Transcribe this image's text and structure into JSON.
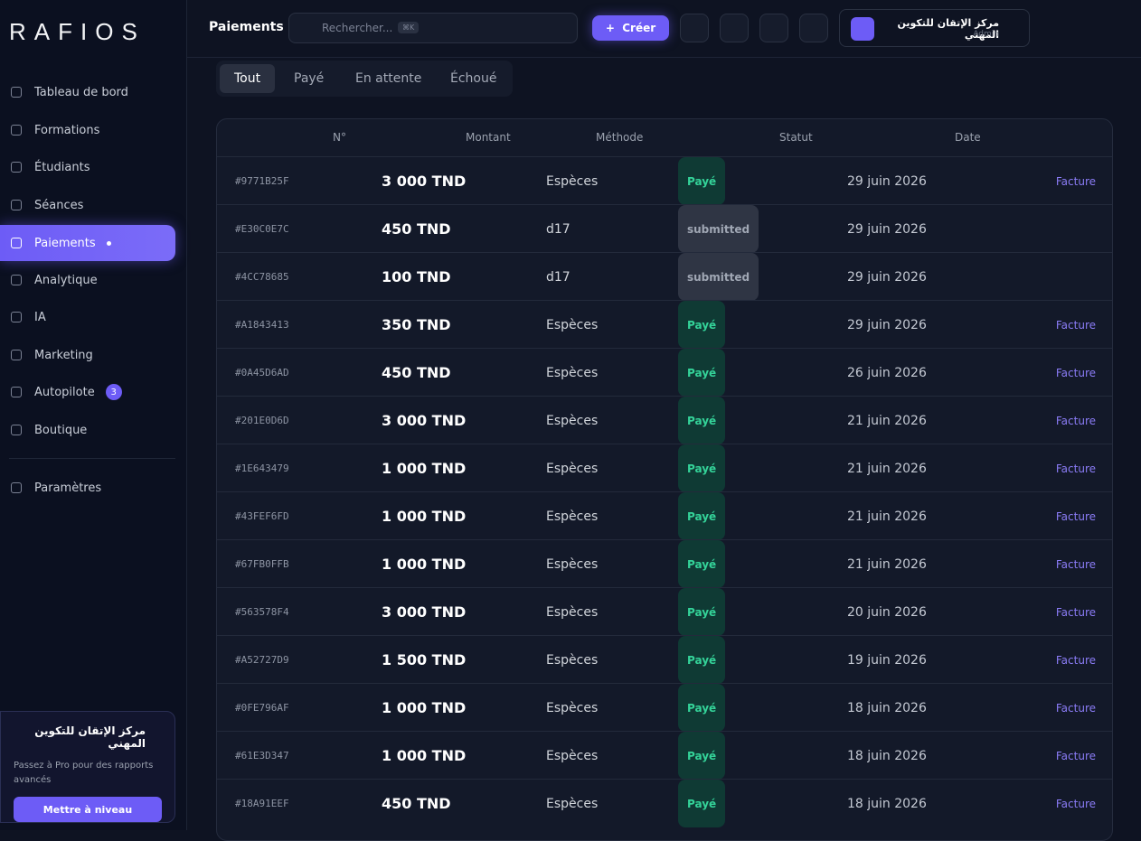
{
  "sidebar": {
    "logo": "RAFIOS",
    "nav": [
      {
        "label": "Tableau de bord"
      },
      {
        "label": "Formations"
      },
      {
        "label": "Étudiants"
      },
      {
        "label": "Séances"
      },
      {
        "label": "Paiements",
        "active": true
      },
      {
        "label": "Analytique"
      },
      {
        "label": "IA"
      },
      {
        "label": "Marketing"
      },
      {
        "label": "Autopilote",
        "badge": "3"
      },
      {
        "label": "Boutique"
      }
    ],
    "settings": "Paramètres",
    "promo": {
      "title": "مركز الإتقان للتكوين المهني",
      "text": "Passez à Pro pour des rapports avancés",
      "button": "Mettre à niveau"
    }
  },
  "topbar": {
    "title": "Paiements",
    "search": "Rechercher...",
    "shortcut": "⌘K",
    "create": "Créer",
    "user": "مركز الإتقان للتكوين المهني",
    "role": "Admin"
  },
  "tabs": [
    "Tout",
    "Payé",
    "En attente",
    "Échoué"
  ],
  "table": {
    "headers": [
      "N°",
      "Montant",
      "Méthode",
      "Statut",
      "Date"
    ],
    "rows": [
      {
        "id": "#9771B25F",
        "amount": "3 000 TND",
        "method": "Espèces",
        "status": "Payé",
        "date": "29 juin 2026",
        "action": "Facture"
      },
      {
        "id": "#E30C0E7C",
        "amount": "450 TND",
        "method": "d17",
        "status": "submitted",
        "date": "29 juin 2026"
      },
      {
        "id": "#4CC78685",
        "amount": "100 TND",
        "method": "d17",
        "status": "submitted",
        "date": "29 juin 2026"
      },
      {
        "id": "#A1843413",
        "amount": "350 TND",
        "method": "Espèces",
        "status": "Payé",
        "date": "29 juin 2026",
        "action": "Facture"
      },
      {
        "id": "#0A45D6AD",
        "amount": "450 TND",
        "method": "Espèces",
        "status": "Payé",
        "date": "26 juin 2026",
        "action": "Facture"
      },
      {
        "id": "#201E0D6D",
        "amount": "3 000 TND",
        "method": "Espèces",
        "status": "Payé",
        "date": "21 juin 2026",
        "action": "Facture"
      },
      {
        "id": "#1E643479",
        "amount": "1 000 TND",
        "method": "Espèces",
        "status": "Payé",
        "date": "21 juin 2026",
        "action": "Facture"
      },
      {
        "id": "#43FEF6FD",
        "amount": "1 000 TND",
        "method": "Espèces",
        "status": "Payé",
        "date": "21 juin 2026",
        "action": "Facture"
      },
      {
        "id": "#67FB0FFB",
        "amount": "1 000 TND",
        "method": "Espèces",
        "status": "Payé",
        "date": "21 juin 2026",
        "action": "Facture"
      },
      {
        "id": "#563578F4",
        "amount": "3 000 TND",
        "method": "Espèces",
        "status": "Payé",
        "date": "20 juin 2026",
        "action": "Facture"
      },
      {
        "id": "#A52727D9",
        "amount": "1 500 TND",
        "method": "Espèces",
        "status": "Payé",
        "date": "19 juin 2026",
        "action": "Facture"
      },
      {
        "id": "#0FE796AF",
        "amount": "1 000 TND",
        "method": "Espèces",
        "status": "Payé",
        "date": "18 juin 2026",
        "action": "Facture"
      },
      {
        "id": "#61E3D347",
        "amount": "1 000 TND",
        "method": "Espèces",
        "status": "Payé",
        "date": "18 juin 2026",
        "action": "Facture"
      },
      {
        "id": "#18A91EEF",
        "amount": "450 TND",
        "method": "Espèces",
        "status": "Payé",
        "date": "18 juin 2026",
        "action": "Facture"
      }
    ]
  }
}
